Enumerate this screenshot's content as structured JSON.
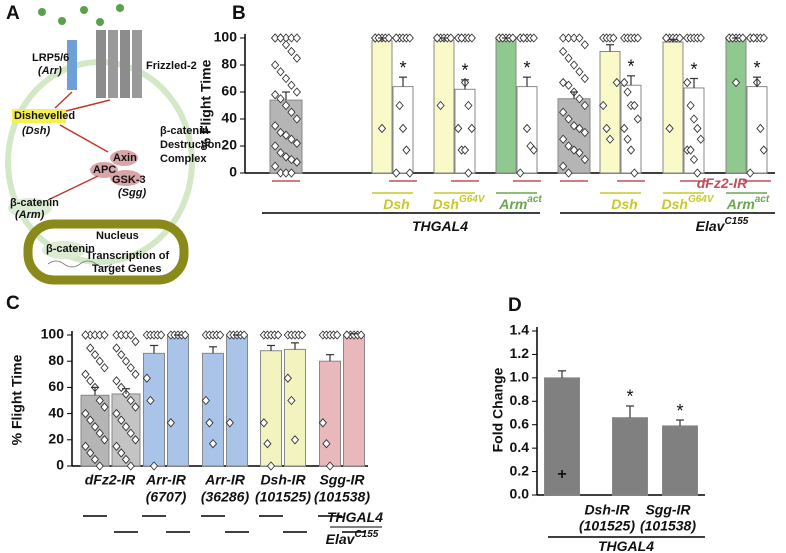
{
  "panel_labels": [
    "A",
    "B",
    "C",
    "D"
  ],
  "diagram": {
    "lrp": "LRP5/6",
    "lrp_gene": "(Arr)",
    "frizzled": "Frizzled-2",
    "dsh": "Dishevelled",
    "dsh_gene": "(Dsh)",
    "axin": "Axin",
    "apc": "APC",
    "gsk": "GSK-3",
    "gsk_gene": "(Sgg)",
    "complex_1": "β-catenin",
    "complex_2": "Destruction",
    "complex_3": "Complex",
    "bcat": "β-catenin",
    "bcat_gene": "(Arm)",
    "nucleus": "Nucleus",
    "nuc_bcat": "β-catenin",
    "transcription_1": "Transcription of",
    "transcription_2": "Target Genes"
  },
  "chart_data": [
    {
      "type": "bar",
      "ylabel": "% Flight Time",
      "ylim": [
        0,
        100
      ],
      "yticks": [
        0,
        20,
        40,
        60,
        80,
        100
      ],
      "values": [
        54,
        98,
        64,
        98,
        62,
        99,
        64,
        55,
        90,
        65,
        97,
        63,
        99,
        64
      ],
      "errors": [
        6,
        2,
        7,
        2,
        7,
        1,
        7,
        5,
        5,
        7,
        2,
        7,
        1,
        7
      ],
      "colors": [
        "#b5b5b5",
        "#fafac8",
        "#ffffff",
        "#fafac8",
        "#ffffff",
        "#8fc98f",
        "#ffffff",
        "#b5b5b5",
        "#fafac8",
        "#ffffff",
        "#fafac8",
        "#ffffff",
        "#8fc98f",
        "#ffffff"
      ],
      "value_annotations": [
        null,
        null,
        "*",
        null,
        "*",
        null,
        "*",
        null,
        null,
        "*",
        null,
        "*",
        null,
        "*"
      ],
      "points": [
        [
          100,
          100,
          100,
          100,
          100,
          100,
          100,
          95,
          90,
          85,
          80,
          75,
          70,
          65,
          60,
          58,
          55,
          50,
          45,
          40,
          35,
          30,
          28,
          25,
          22,
          20,
          15,
          12,
          10,
          8,
          5,
          0,
          0,
          0
        ],
        [
          100,
          100,
          100,
          100,
          100,
          100,
          100,
          33
        ],
        [
          100,
          100,
          100,
          100,
          100,
          100,
          50,
          33,
          17,
          0,
          0
        ],
        [
          100,
          100,
          100,
          100,
          100,
          100,
          50
        ],
        [
          100,
          100,
          100,
          100,
          100,
          100,
          100,
          67,
          50,
          33,
          33,
          17,
          17,
          0
        ],
        [
          100,
          100,
          100,
          100,
          100,
          100,
          100
        ],
        [
          100,
          100,
          100,
          100,
          100,
          100,
          100,
          33,
          20,
          17,
          0
        ],
        [
          100,
          100,
          100,
          100,
          95,
          90,
          85,
          80,
          75,
          70,
          67,
          65,
          60,
          55,
          50,
          45,
          40,
          35,
          33,
          30,
          25,
          20,
          17,
          15,
          10,
          5,
          0
        ],
        [
          100,
          100,
          100,
          100,
          67,
          50,
          33,
          25
        ],
        [
          100,
          100,
          100,
          100,
          100,
          67,
          60,
          50,
          50,
          40,
          33,
          25,
          17,
          0
        ],
        [
          100,
          100,
          100,
          100,
          100,
          100,
          33
        ],
        [
          100,
          100,
          100,
          100,
          100,
          67,
          50,
          40,
          33,
          25,
          17,
          17,
          10,
          0
        ],
        [
          100,
          100,
          100,
          100,
          100,
          100,
          100,
          67
        ],
        [
          100,
          100,
          100,
          100,
          100,
          100,
          100,
          67,
          33,
          17,
          0
        ]
      ],
      "group_labels": [
        {
          "text": "Dsh",
          "color": "#c8c82a"
        },
        {
          "text": "Dsh",
          "sup": "G64V",
          "color": "#c8c82a"
        },
        {
          "text": "Arm",
          "sup": "act",
          "color": "#6aa84f"
        },
        {
          "text": "Dsh",
          "color": "#c8c82a"
        },
        {
          "text": "Dsh",
          "sup": "G64V",
          "color": "#c8c82a"
        },
        {
          "text": "Arm",
          "sup": "act",
          "color": "#6aa84f"
        },
        {
          "text": "dFz2-IR",
          "color": "#c0505a"
        },
        {
          "text": "THGAL4"
        },
        {
          "text": "Elav",
          "sup": "C155"
        }
      ]
    },
    {
      "type": "bar",
      "ylabel": "% Flight Time",
      "ylim": [
        0,
        100
      ],
      "yticks": [
        0,
        20,
        40,
        60,
        80,
        100
      ],
      "values": [
        54,
        55,
        86,
        99,
        86,
        99,
        88,
        89,
        80,
        100
      ],
      "errors": [
        6,
        4,
        6,
        1,
        5,
        1,
        4,
        5,
        5,
        1
      ],
      "colors": [
        "#b5b5b5",
        "#c4c4c4",
        "#a9c4e8",
        "#a9c4e8",
        "#a9c4e8",
        "#a9c4e8",
        "#f3f3c0",
        "#f3f3c0",
        "#e8b8bc",
        "#e8b8bc"
      ],
      "points": [
        [
          100,
          100,
          100,
          100,
          100,
          100,
          90,
          85,
          80,
          75,
          70,
          65,
          60,
          50,
          45,
          40,
          35,
          30,
          25,
          20,
          15,
          10,
          5,
          0
        ],
        [
          100,
          100,
          100,
          100,
          95,
          90,
          85,
          80,
          75,
          70,
          65,
          60,
          55,
          50,
          45,
          40,
          35,
          30,
          25,
          20,
          15,
          10,
          5,
          0
        ],
        [
          100,
          100,
          100,
          100,
          100,
          67,
          50,
          0
        ],
        [
          100,
          100,
          100,
          100,
          100,
          33
        ],
        [
          100,
          100,
          100,
          100,
          100,
          50,
          33,
          17
        ],
        [
          100,
          100,
          100,
          100,
          100,
          33
        ],
        [
          100,
          100,
          100,
          100,
          100,
          33,
          17,
          0
        ],
        [
          100,
          100,
          100,
          100,
          100,
          67,
          50,
          20
        ],
        [
          100,
          100,
          100,
          100,
          100,
          33,
          17,
          0
        ],
        [
          100,
          100,
          100,
          100,
          100,
          100
        ]
      ],
      "group_labels": [
        {
          "lines": [
            "dFz2-IR"
          ],
          "color": "#c0606a"
        },
        {
          "lines": [
            "Arr-IR",
            "(6707)"
          ],
          "color": "#5b8bc9"
        },
        {
          "lines": [
            "Arr-IR",
            "(36286)"
          ],
          "color": "#5b8bc9"
        },
        {
          "lines": [
            "Dsh-IR",
            "(101525)"
          ],
          "color": "#cccc33"
        },
        {
          "lines": [
            "Sgg-IR",
            "(101538)"
          ],
          "color": "#c0392b"
        }
      ],
      "driver_labels": [
        {
          "text": "THGAL4"
        },
        {
          "text": "Elav",
          "sup": "C155"
        }
      ]
    },
    {
      "type": "bar",
      "ylabel": "Fold Change",
      "ylim": [
        0,
        1.4
      ],
      "yticks": [
        {
          "value": 0,
          "label": "0.0"
        },
        0.2,
        0.4,
        0.6,
        0.8,
        {
          "value": 1,
          "label": "1.0"
        },
        1.2,
        1.4
      ],
      "values": [
        1.0,
        0.66,
        0.59
      ],
      "errors": [
        0.06,
        0.1,
        0.05
      ],
      "colors": [
        "#808080",
        "#808080",
        "#808080"
      ],
      "categories": [
        null,
        [
          "Dsh-IR",
          "(101525)"
        ],
        [
          "Sgg-IR",
          "(101538)"
        ]
      ],
      "value_annotations": [
        null,
        "*",
        "*"
      ],
      "base_markers": [
        "+",
        null,
        null
      ],
      "driver_labels": [
        {
          "text": "THGAL4"
        }
      ]
    }
  ]
}
